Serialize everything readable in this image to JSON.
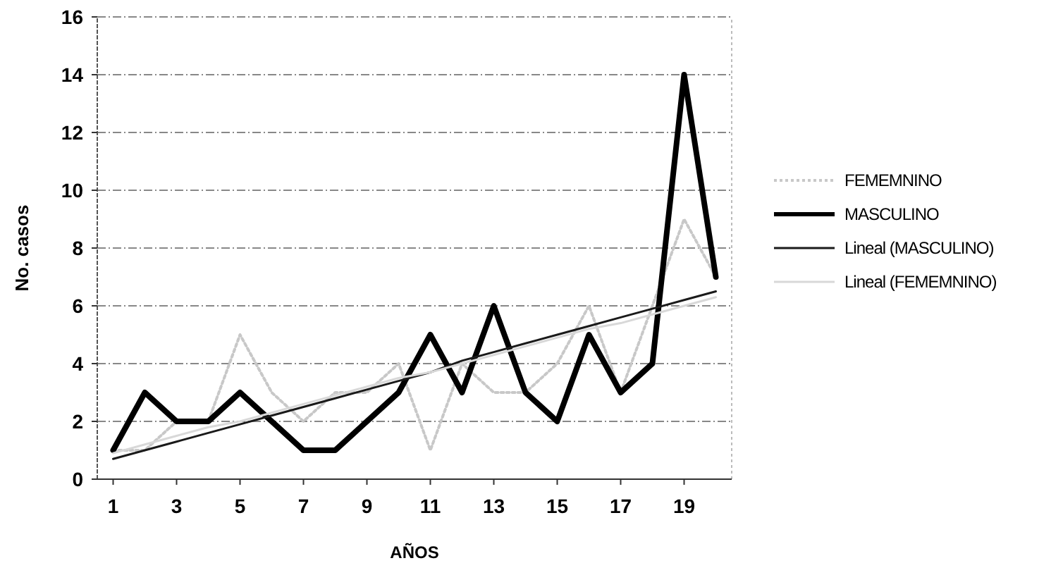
{
  "chart_data": {
    "type": "line",
    "xlabel": "AÑOS",
    "ylabel": "No. casos",
    "x": [
      1,
      2,
      3,
      4,
      5,
      6,
      7,
      8,
      9,
      10,
      11,
      12,
      13,
      14,
      15,
      16,
      17,
      18,
      19,
      20
    ],
    "xlim": [
      0.5,
      20.5
    ],
    "xticks": [
      1,
      3,
      5,
      7,
      9,
      11,
      13,
      15,
      17,
      19
    ],
    "ylim": [
      0,
      16
    ],
    "yticks": [
      0,
      2,
      4,
      6,
      8,
      10,
      12,
      14,
      16
    ],
    "grid": "y",
    "legend": "right",
    "marker": "none",
    "series": [
      {
        "name": "FEMEMNINO",
        "color": "#c8c8c8",
        "line_style": "dotted",
        "values": [
          1,
          1,
          2,
          2,
          5,
          3,
          2,
          3,
          3,
          4,
          1,
          4,
          3,
          3,
          4,
          6,
          3,
          6,
          9,
          7
        ]
      },
      {
        "name": "MASCULINO",
        "color": "#000000",
        "line_style": "solid",
        "values": [
          1,
          3,
          2,
          2,
          3,
          2,
          1,
          1,
          2,
          3,
          5,
          3,
          6,
          3,
          2,
          5,
          3,
          4,
          14,
          7
        ]
      },
      {
        "name": "Lineal (MASCULINO)",
        "color": "#1a1a1a",
        "line_style": "solid",
        "values": [
          0.7,
          1.0,
          1.3,
          1.6,
          1.9,
          2.2,
          2.5,
          2.8,
          3.1,
          3.4,
          3.7,
          4.1,
          4.4,
          4.7,
          5.0,
          5.3,
          5.6,
          5.9,
          6.2,
          6.5
        ]
      },
      {
        "name": "Lineal (FEMEMNINO)",
        "color": "#d8d8d8",
        "line_style": "solid",
        "values": [
          0.9,
          1.2,
          1.5,
          1.8,
          2.0,
          2.3,
          2.6,
          2.9,
          3.2,
          3.5,
          3.7,
          4.0,
          4.3,
          4.6,
          4.9,
          5.2,
          5.4,
          5.7,
          6.0,
          6.3
        ]
      }
    ]
  }
}
